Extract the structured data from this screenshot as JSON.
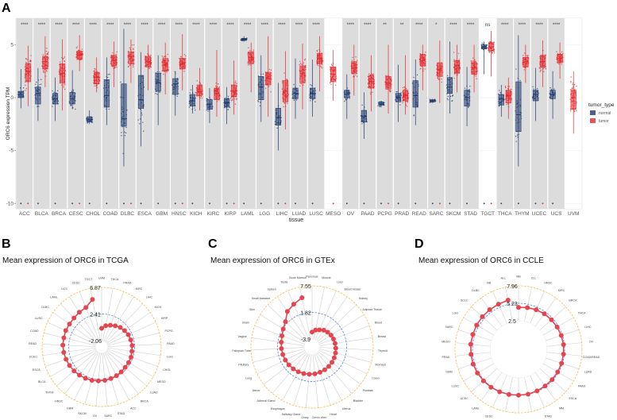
{
  "panels": {
    "a": "A",
    "b": "B",
    "c": "C",
    "d": "D"
  },
  "chart_data": [
    {
      "type": "box",
      "xlabel": "tissue",
      "ylabel": "ORC6 expression TPM",
      "ylim": [
        -10.5,
        7.5
      ],
      "yticks": [
        -10,
        -5,
        0,
        5
      ],
      "legend": {
        "title": "tumor_type",
        "position": "right",
        "entries": [
          "normal",
          "tumor"
        ]
      },
      "colors": {
        "normal": "#1f3a6e",
        "tumor": "#e8262b",
        "panel_bg": "#dcdcdc"
      },
      "stat_fields": [
        "median",
        "q1",
        "q3",
        "whisker_low",
        "whisker_high"
      ],
      "groups": [
        {
          "tissue": "ACC",
          "sig": "****",
          "normal": [
            0.3,
            0,
            0.6,
            -1,
            2.7
          ],
          "tumor": [
            2.5,
            1.5,
            3.2,
            -0.8,
            4.9
          ]
        },
        {
          "tissue": "BLCA",
          "sig": "****",
          "normal": [
            0.4,
            -0.6,
            1.0,
            -2.2,
            2.8
          ],
          "tumor": [
            3.4,
            2.7,
            3.9,
            1,
            5.8
          ]
        },
        {
          "tissue": "BRCA",
          "sig": "****",
          "normal": [
            -0.1,
            -0.6,
            0.4,
            -2.2,
            1.9
          ],
          "tumor": [
            2.3,
            1.4,
            3.2,
            -1.2,
            5.5
          ]
        },
        {
          "tissue": "CESC",
          "sig": "****",
          "normal": [
            -0.1,
            -0.6,
            0.5,
            -1.1,
            2.6
          ],
          "tumor": [
            4.0,
            3.6,
            4.4,
            2.5,
            5.9
          ]
        },
        {
          "tissue": "CHOL",
          "sig": "****",
          "normal": [
            -2.1,
            -2.3,
            -1.8,
            -2.5,
            -1.2
          ],
          "tumor": [
            1.9,
            1.3,
            2.4,
            0.5,
            3.8
          ]
        },
        {
          "tissue": "COAD",
          "sig": "****",
          "normal": [
            0.2,
            -0.9,
            1.7,
            -2.6,
            3.8
          ],
          "tumor": [
            3.5,
            3.0,
            4.0,
            1,
            5.3
          ]
        },
        {
          "tissue": "DLBC",
          "sig": "****",
          "normal": [
            -2.0,
            -2.7,
            1.3,
            -6.5,
            6.5
          ],
          "tumor": [
            3.9,
            3.2,
            4.3,
            1.4,
            5.5
          ]
        },
        {
          "tissue": "ESCA",
          "sig": "****",
          "normal": [
            -0.2,
            -1.0,
            2.1,
            -4.6,
            4.3
          ],
          "tumor": [
            3.4,
            2.9,
            3.9,
            0.7,
            5.0
          ]
        },
        {
          "tissue": "GBM",
          "sig": "****",
          "normal": [
            1.4,
            0.6,
            2.3,
            -2.6,
            4.0
          ],
          "tumor": [
            3.1,
            2.5,
            3.7,
            0.3,
            5.2
          ]
        },
        {
          "tissue": "HNSC",
          "sig": "****",
          "normal": [
            1.3,
            0.3,
            1.8,
            -1.7,
            2.5
          ],
          "tumor": [
            3.2,
            2.7,
            3.7,
            0.7,
            6.0
          ]
        },
        {
          "tissue": "KICH",
          "sig": "****",
          "normal": [
            -0.3,
            -0.8,
            0.3,
            -1.5,
            1.2
          ],
          "tumor": [
            0.6,
            0.2,
            1.2,
            -1.2,
            2.8
          ]
        },
        {
          "tissue": "KIRC",
          "sig": "****",
          "normal": [
            -0.6,
            -1.1,
            -0.2,
            -2.4,
            0.9
          ],
          "tumor": [
            0.4,
            -0.2,
            0.9,
            -1.8,
            4.5
          ]
        },
        {
          "tissue": "KIRP",
          "sig": "****",
          "normal": [
            -0.5,
            -0.9,
            -0.1,
            -2.5,
            1.0
          ],
          "tumor": [
            0.6,
            0.1,
            1.2,
            -1.6,
            3.5
          ]
        },
        {
          "tissue": "LAML",
          "sig": "****",
          "normal": [
            5.5,
            5.4,
            5.6,
            5.3,
            5.8
          ],
          "tumor": [
            3.8,
            3.2,
            4.3,
            0.5,
            5.2
          ]
        },
        {
          "tissue": "LGG",
          "sig": "****",
          "normal": [
            1.0,
            -0.2,
            2.0,
            -2.3,
            4.0
          ],
          "tumor": [
            1.8,
            1.2,
            2.4,
            -1.8,
            5.8
          ]
        },
        {
          "tissue": "LIHC",
          "sig": "****",
          "normal": [
            -1.9,
            -2.6,
            -1.0,
            -5,
            1.4
          ],
          "tumor": [
            0.6,
            -0.4,
            1.6,
            -3,
            4.4
          ]
        },
        {
          "tissue": "LUAD",
          "sig": "****",
          "normal": [
            0.4,
            -0.1,
            0.9,
            -2,
            3.7
          ],
          "tumor": [
            2.3,
            1.4,
            3.0,
            -1.1,
            5.1
          ]
        },
        {
          "tissue": "LUSC",
          "sig": "****",
          "normal": [
            0.4,
            -0.1,
            0.9,
            -1.8,
            3.6
          ],
          "tumor": [
            3.7,
            3.2,
            4.2,
            0.6,
            5.8
          ]
        },
        {
          "tissue": "MESO",
          "sig": "",
          "normal": null,
          "tumor": [
            2.2,
            1.5,
            2.9,
            -0.3,
            4.5
          ]
        },
        {
          "tissue": "OV",
          "sig": "****",
          "normal": [
            0.3,
            0,
            0.7,
            -2,
            2.2
          ],
          "tumor": [
            2.8,
            2.3,
            3.4,
            0.2,
            5.0
          ]
        },
        {
          "tissue": "PAAD",
          "sig": "****",
          "normal": [
            -1.8,
            -2.3,
            -1.2,
            -3.9,
            0.5
          ],
          "tumor": [
            1.5,
            0.9,
            2.1,
            -1.3,
            4.0
          ]
        },
        {
          "tissue": "PCPG",
          "sig": "**",
          "normal": [
            -0.6,
            -0.7,
            -0.4,
            -0.9,
            -0.3
          ],
          "tumor": [
            1.4,
            0.8,
            2.0,
            -1.5,
            5.0
          ]
        },
        {
          "tissue": "PRAD",
          "sig": "**",
          "normal": [
            0,
            -0.4,
            0.4,
            -2.3,
            3.1
          ],
          "tumor": [
            0.2,
            -0.3,
            0.7,
            -1.6,
            4.0
          ]
        },
        {
          "tissue": "READ",
          "sig": "****",
          "normal": [
            0.2,
            -0.9,
            1.6,
            -2.6,
            3.6
          ],
          "tumor": [
            3.5,
            3.0,
            4.1,
            0.7,
            5.0
          ]
        },
        {
          "tissue": "SARC",
          "sig": "*",
          "normal": [
            -0.3,
            -0.4,
            -0.2,
            -0.5,
            -0.1
          ],
          "tumor": [
            2.6,
            2.0,
            3.3,
            -0.5,
            5.4
          ]
        },
        {
          "tissue": "SKCM",
          "sig": "****",
          "normal": [
            1.0,
            0.4,
            1.9,
            -1.5,
            5.3
          ],
          "tumor": [
            3.0,
            2.3,
            3.5,
            0.5,
            5.0
          ]
        },
        {
          "tissue": "STAD",
          "sig": "****",
          "normal": [
            0,
            -0.8,
            0.7,
            -2.7,
            2.9
          ],
          "tumor": [
            2.8,
            2.2,
            3.3,
            0.5,
            5.0
          ]
        },
        {
          "tissue": "TGCT",
          "sig": "ns",
          "normal": [
            4.8,
            4.6,
            5.0,
            2.2,
            5.3
          ],
          "tumor": [
            4.8,
            4.4,
            5.2,
            2.0,
            6.3
          ]
        },
        {
          "tissue": "THCA",
          "sig": "****",
          "normal": [
            -0.1,
            -0.7,
            0.3,
            -1.8,
            1.2
          ],
          "tumor": [
            0.2,
            -0.5,
            0.7,
            -2,
            1.9
          ]
        },
        {
          "tissue": "THYM",
          "sig": "****",
          "normal": [
            -1.6,
            -3.2,
            1.5,
            -6.5,
            5.9
          ],
          "tumor": [
            3.4,
            2.9,
            3.8,
            1.4,
            5.0
          ]
        },
        {
          "tissue": "UCEC",
          "sig": "****",
          "normal": [
            0.3,
            -0.3,
            0.7,
            -2.2,
            2.8
          ],
          "tumor": [
            3.4,
            2.9,
            4.0,
            1.0,
            5.4
          ]
        },
        {
          "tissue": "UCS",
          "sig": "****",
          "normal": [
            0.3,
            -0.1,
            0.7,
            -2.0,
            2.5
          ],
          "tumor": [
            3.7,
            3.3,
            4.1,
            1.8,
            5.2
          ]
        },
        {
          "tissue": "UVM",
          "sig": "",
          "normal": null,
          "tumor": [
            0.0,
            -1.1,
            0.7,
            -3.4,
            2.5
          ]
        }
      ]
    },
    {
      "type": "radar",
      "title": "Mean expression of ORC6 in TCGA",
      "rings": [
        -2.06,
        2.41,
        6.87
      ],
      "categories": [
        "UVM",
        "THCA",
        "PRAD",
        "KIRC",
        "LIHC",
        "KICH",
        "KIRP",
        "PCPG",
        "PAAD",
        "LGG",
        "CHOL",
        "MESO",
        "LUAD",
        "BRCA",
        "ACC",
        "STAD",
        "SARC",
        "OV",
        "SKCM",
        "GBM",
        "HNSC",
        "THYM",
        "BLCA",
        "ESCA",
        "UCEC",
        "READ",
        "COAD",
        "LUSC",
        "DLBC",
        "LAML",
        "UCS",
        "CESC",
        "TGCT"
      ],
      "values": [
        0.0,
        0.5,
        0.8,
        1.1,
        1.4,
        1.6,
        1.8,
        1.9,
        2.0,
        2.0,
        2.1,
        2.1,
        2.1,
        2.2,
        2.3,
        2.4,
        2.5,
        2.6,
        2.7,
        2.8,
        2.9,
        3.0,
        3.1,
        3.2,
        3.3,
        3.4,
        3.4,
        3.5,
        3.5,
        3.6,
        3.8,
        4.0,
        5.0
      ]
    },
    {
      "type": "radar",
      "title": "Mean expression of ORC6 in GTEx",
      "rings": [
        -3.9,
        1.82,
        7.55
      ],
      "categories": [
        "Pancreas",
        "Muscle",
        "Liver",
        "Blood Vessel",
        "Kidney",
        "Adipose Tissue",
        "Blood",
        "Breast",
        "Thyroid",
        "Stomach",
        "Colon",
        "Prostate",
        "Bladder",
        "Uterus",
        "Heart",
        "Cervix Uteri",
        "Ovary",
        "Salivary Gland",
        "Esophagus",
        "Adrenal Gland",
        "Nerve",
        "Lung",
        "Pituitary",
        "Fallopian Tube",
        "Vagina",
        "Brain",
        "Skin",
        "Small Intestine",
        "Spleen",
        "Testis",
        "Bone Marrow"
      ],
      "values": [
        -2.4,
        -1.9,
        -1.6,
        -1.2,
        -1.0,
        -0.8,
        -0.7,
        -0.6,
        -0.5,
        -0.4,
        -0.3,
        -0.2,
        -0.1,
        0.0,
        0.1,
        0.2,
        0.3,
        0.4,
        0.5,
        0.6,
        0.7,
        0.8,
        0.9,
        1.0,
        1.1,
        1.3,
        1.7,
        2.3,
        3.7,
        4.4,
        5.2
      ]
    },
    {
      "type": "radar",
      "title": "Mean expression of ORC6 in CCLE",
      "rings": [
        2.5,
        5.23,
        7.96
      ],
      "categories": [
        "MB",
        "CLL",
        "HNSC",
        "KIRC",
        "BRCA",
        "THCA",
        "LIHC",
        "OV",
        "COAD/READ",
        "LUAD",
        "PAAD",
        "ESCA",
        "MM",
        "STAD",
        "BLCA",
        "SKCM",
        "LCML",
        "CESC",
        "LAML",
        "UCEC",
        "LUSC",
        "GBM",
        "PRAD",
        "MESO",
        "SARC",
        "LGG",
        "SCLC",
        "DLBC",
        "NB",
        "ALL"
      ],
      "values": [
        4.6,
        4.7,
        4.8,
        4.9,
        4.95,
        5.0,
        5.05,
        5.1,
        5.1,
        5.1,
        5.1,
        5.1,
        5.1,
        5.15,
        5.2,
        5.2,
        5.25,
        5.3,
        5.35,
        5.4,
        5.45,
        5.5,
        5.5,
        5.55,
        5.55,
        5.6,
        5.65,
        5.7,
        5.75,
        5.9
      ]
    }
  ]
}
